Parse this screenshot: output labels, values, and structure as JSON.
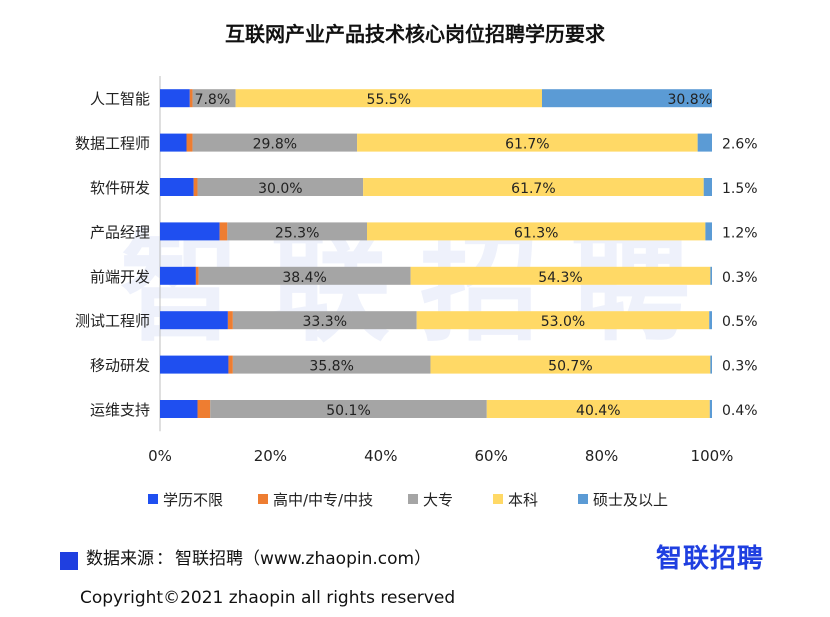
{
  "chart_data": {
    "type": "bar",
    "orientation": "horizontal",
    "stacked": true,
    "title": "互联网产业产品技术核心岗位招聘学历要求",
    "categories": [
      "人工智能",
      "数据工程师",
      "软件研发",
      "产品经理",
      "前端开发",
      "测试工程师",
      "移动研发",
      "运维支持"
    ],
    "series": [
      {
        "name": "学历不限",
        "color": "#1f4ff0",
        "values": [
          5.4,
          4.8,
          6.1,
          10.8,
          6.5,
          12.3,
          12.4,
          6.8
        ],
        "labels": [
          "",
          "",
          "",
          "",
          "",
          "",
          "",
          ""
        ]
      },
      {
        "name": "高中/中专/中技",
        "color": "#ee7d31",
        "values": [
          0.5,
          1.1,
          0.7,
          1.4,
          0.5,
          0.9,
          0.8,
          2.3
        ],
        "labels": [
          "",
          "",
          "",
          "",
          "",
          "",
          "",
          ""
        ]
      },
      {
        "name": "大专",
        "color": "#a5a5a5",
        "values": [
          7.8,
          29.8,
          30.0,
          25.3,
          38.4,
          33.3,
          35.8,
          50.1
        ],
        "labels": [
          "7.8%",
          "29.8%",
          "30.0%",
          "25.3%",
          "38.4%",
          "33.3%",
          "35.8%",
          "50.1%"
        ]
      },
      {
        "name": "本科",
        "color": "#ffd966",
        "values": [
          55.5,
          61.7,
          61.7,
          61.3,
          54.3,
          53.0,
          50.7,
          40.4
        ],
        "labels": [
          "55.5%",
          "61.7%",
          "61.7%",
          "61.3%",
          "54.3%",
          "53.0%",
          "50.7%",
          "40.4%"
        ]
      },
      {
        "name": "硕士及以上",
        "color": "#5b9bd5",
        "values": [
          30.8,
          2.6,
          1.5,
          1.2,
          0.3,
          0.5,
          0.3,
          0.4
        ],
        "labels": [
          "30.8%",
          "2.6%",
          "1.5%",
          "1.2%",
          "0.3%",
          "0.5%",
          "0.3%",
          "0.4%"
        ]
      }
    ],
    "xlim": [
      0,
      100
    ],
    "xticks": [
      "0%",
      "20%",
      "40%",
      "60%",
      "80%",
      "100%"
    ],
    "legend": "bottom",
    "grid": false
  },
  "source": {
    "label": "数据来源",
    "colon": "：",
    "text": "智联招聘（www.zhaopin.com）"
  },
  "logo": "智联招聘",
  "watermark": "智联招聘",
  "copyright": "Copyright©2021 zhaopin all rights reserved"
}
